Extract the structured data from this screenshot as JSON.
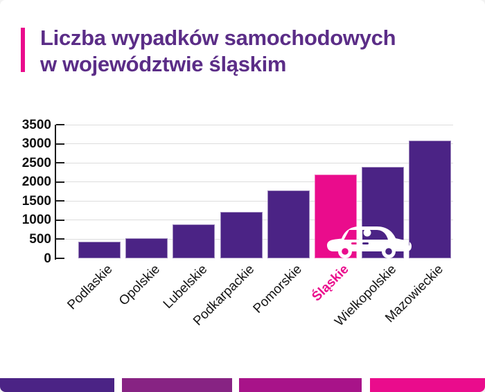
{
  "title": {
    "line1": "Liczba wypadków samochodowych",
    "line2": "w województwie śląskim"
  },
  "chart_data": {
    "type": "bar",
    "categories": [
      "Podlaskie",
      "Opolskie",
      "Lubelskie",
      "Podkarpackie",
      "Pomorskie",
      "Śląskie",
      "Wielkopolskie",
      "Mazowieckie"
    ],
    "values": [
      430,
      530,
      880,
      1220,
      1780,
      2200,
      2400,
      3090
    ],
    "highlight_category": "Śląskie",
    "title": "Liczba wypadków samochodowych w województwie śląskim",
    "xlabel": "",
    "ylabel": "",
    "ylim": [
      0,
      3500
    ],
    "ytick_labels": [
      "0",
      "500",
      "1000",
      "1500",
      "2000",
      "2500",
      "3000",
      "3500"
    ],
    "grid": "horizontal",
    "legend": "none",
    "bar_color": "#4B2385",
    "highlight_color": "#EA0C8C"
  },
  "colors": {
    "title_text": "#5B2D87",
    "accent_pink": "#EA0C8C",
    "bar_purple": "#4B2385",
    "bar_pink": "#EA0C8C",
    "axis_black": "#1a1a1a",
    "gridline_gray": "#dcdcdc"
  },
  "icons": {
    "car": "car-icon"
  },
  "footer": {
    "segments": [
      {
        "name": "footer-segment-1",
        "color": "#4B2385"
      },
      {
        "name": "footer-segment-2",
        "color": "#872383"
      },
      {
        "name": "footer-segment-3",
        "color": "#A81389"
      },
      {
        "name": "footer-segment-4",
        "color": "#EA0C8C"
      }
    ]
  }
}
